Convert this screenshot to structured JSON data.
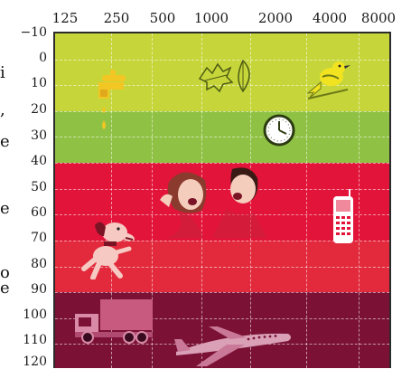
{
  "fragments": [
    "i",
    ",",
    "e",
    "e",
    "o",
    "e"
  ],
  "x_ticks": [
    "125",
    "250",
    "500",
    "1000",
    "2000",
    "4000",
    "8000"
  ],
  "y_ticks": [
    "−10",
    "0",
    "10",
    "20",
    "30",
    "40",
    "50",
    "60",
    "70",
    "80",
    "90",
    "100",
    "110",
    "120"
  ],
  "bands": [
    {
      "from": -10,
      "to": 20,
      "color": "#c6d63a"
    },
    {
      "from": 20,
      "to": 40,
      "color": "#8fc244"
    },
    {
      "from": 40,
      "to": 70,
      "color": "#e2143a"
    },
    {
      "from": 70,
      "to": 90,
      "color": "#e22a3c"
    },
    {
      "from": 90,
      "to": 120,
      "color": "#7b1236"
    }
  ],
  "icons": [
    {
      "name": "dripping-faucet-icon"
    },
    {
      "name": "rustling-leaves-icon"
    },
    {
      "name": "songbird-icon"
    },
    {
      "name": "ticking-clock-icon"
    },
    {
      "name": "conversation-people-icon"
    },
    {
      "name": "mobile-phone-icon"
    },
    {
      "name": "barking-dog-icon"
    },
    {
      "name": "truck-icon"
    },
    {
      "name": "airplane-icon"
    }
  ]
}
